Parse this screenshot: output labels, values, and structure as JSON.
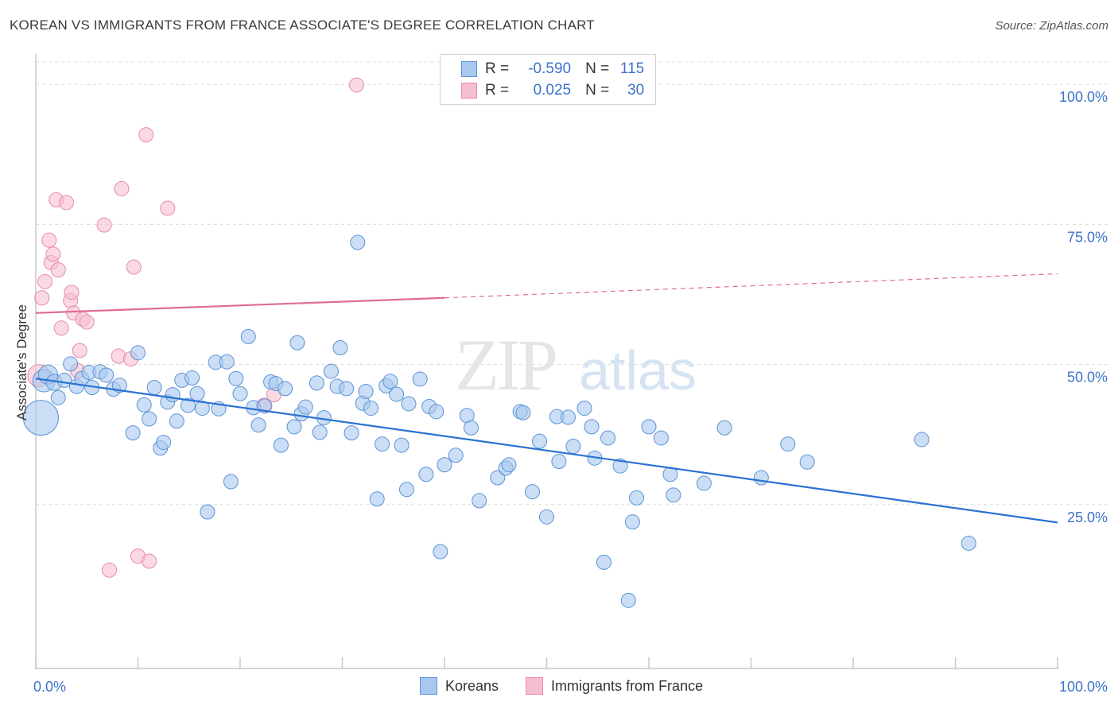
{
  "header": {
    "title": "KOREAN VS IMMIGRANTS FROM FRANCE ASSOCIATE'S DEGREE CORRELATION CHART",
    "source": "Source: ZipAtlas.com"
  },
  "watermark": {
    "zip": "ZIP",
    "atlas": "atlas"
  },
  "legend_box": {
    "rows": [
      {
        "r_label": "R =",
        "r_value": "-0.590",
        "n_label": "N =",
        "n_value": "115"
      },
      {
        "r_label": "R =",
        "r_value": "0.025",
        "n_label": "N =",
        "n_value": "30"
      }
    ]
  },
  "bottom_legend": [
    {
      "label": "Koreans"
    },
    {
      "label": "Immigrants from France"
    }
  ],
  "colors": {
    "blue_fill": "#a9c8ef",
    "blue_stroke": "#5b93d6",
    "blue_line": "#2a72d2",
    "pink_fill": "#f6bfd1",
    "pink_stroke": "#e88aa9",
    "pink_line": "#e06c93",
    "tick_label": "#3a74c9",
    "grid": "#dcdcdc"
  },
  "chart_data": {
    "type": "scatter",
    "title": "KOREAN VS IMMIGRANTS FROM FRANCE ASSOCIATE'S DEGREE CORRELATION CHART",
    "ylabel": "Associate's Degree",
    "xlabel": "",
    "xlim": [
      0,
      100
    ],
    "ylim": [
      0,
      105
    ],
    "x_tick_labels": [
      "0.0%",
      "100.0%"
    ],
    "y_ticks": [
      25,
      50,
      75,
      100
    ],
    "y_tick_labels": [
      "25.0%",
      "50.0%",
      "75.0%",
      "100.0%"
    ],
    "grid": true,
    "legend_position": "top-center",
    "series": [
      {
        "name": "Koreans",
        "color": "#a9c8ef",
        "R": -0.59,
        "N": 115,
        "trend": {
          "x": [
            0,
            100
          ],
          "y": [
            47.5,
            21.8
          ],
          "style": "solid"
        },
        "points": [
          [
            0.5,
            40.5,
            22
          ],
          [
            0.8,
            47.1,
            14
          ],
          [
            1.2,
            48.2,
            12
          ],
          [
            1.8,
            46.8,
            10
          ],
          [
            2.2,
            44.1,
            9
          ],
          [
            2.8,
            47.2,
            9
          ],
          [
            3.4,
            50.1,
            9
          ],
          [
            4.0,
            46.1,
            9
          ],
          [
            4.5,
            47.5,
            9
          ],
          [
            5.2,
            48.6,
            9
          ],
          [
            5.5,
            45.9,
            9
          ],
          [
            6.3,
            48.7,
            9
          ],
          [
            6.9,
            48.1,
            9
          ],
          [
            7.6,
            45.6,
            9
          ],
          [
            8.2,
            46.3,
            9
          ],
          [
            9.5,
            37.8,
            9
          ],
          [
            10.0,
            52.1,
            9
          ],
          [
            10.6,
            42.8,
            9
          ],
          [
            11.1,
            40.3,
            9
          ],
          [
            11.6,
            45.9,
            9
          ],
          [
            12.2,
            35.1,
            9
          ],
          [
            12.5,
            36.1,
            9
          ],
          [
            12.9,
            43.3,
            9
          ],
          [
            13.4,
            44.6,
            9
          ],
          [
            13.8,
            39.9,
            9
          ],
          [
            14.3,
            47.2,
            9
          ],
          [
            14.9,
            42.7,
            9
          ],
          [
            15.3,
            47.6,
            9
          ],
          [
            15.8,
            44.8,
            9
          ],
          [
            16.3,
            42.2,
            9
          ],
          [
            16.8,
            23.7,
            9
          ],
          [
            17.6,
            50.4,
            9
          ],
          [
            17.9,
            42.1,
            9
          ],
          [
            18.7,
            50.5,
            9
          ],
          [
            19.1,
            29.1,
            9
          ],
          [
            19.6,
            47.5,
            9
          ],
          [
            20.0,
            44.8,
            9
          ],
          [
            20.8,
            55.0,
            9
          ],
          [
            21.3,
            42.3,
            9
          ],
          [
            21.8,
            39.2,
            9
          ],
          [
            22.4,
            42.6,
            9
          ],
          [
            23.0,
            46.9,
            9
          ],
          [
            23.5,
            46.6,
            9
          ],
          [
            24.0,
            35.6,
            9
          ],
          [
            24.4,
            45.7,
            9
          ],
          [
            25.3,
            38.9,
            9
          ],
          [
            25.6,
            53.9,
            9
          ],
          [
            26.0,
            41.2,
            9
          ],
          [
            26.4,
            42.4,
            9
          ],
          [
            27.5,
            46.7,
            9
          ],
          [
            27.8,
            37.9,
            9
          ],
          [
            28.2,
            40.5,
            9
          ],
          [
            28.9,
            48.8,
            9
          ],
          [
            29.5,
            46.1,
            9
          ],
          [
            29.8,
            53.0,
            9
          ],
          [
            30.4,
            45.7,
            9
          ],
          [
            30.9,
            37.8,
            9
          ],
          [
            31.5,
            71.8,
            9
          ],
          [
            32.0,
            43.1,
            9
          ],
          [
            32.3,
            45.2,
            9
          ],
          [
            32.8,
            42.2,
            9
          ],
          [
            33.4,
            26.0,
            9
          ],
          [
            33.9,
            35.8,
            9
          ],
          [
            34.3,
            46.2,
            9
          ],
          [
            34.7,
            47.0,
            9
          ],
          [
            35.3,
            44.7,
            9
          ],
          [
            35.8,
            35.6,
            9
          ],
          [
            36.3,
            27.7,
            9
          ],
          [
            36.5,
            43.0,
            9
          ],
          [
            37.6,
            47.4,
            9
          ],
          [
            38.2,
            30.4,
            9
          ],
          [
            38.5,
            42.5,
            9
          ],
          [
            39.2,
            41.6,
            9
          ],
          [
            39.6,
            16.6,
            9
          ],
          [
            40.0,
            32.1,
            9
          ],
          [
            41.1,
            33.8,
            9
          ],
          [
            42.2,
            40.9,
            9
          ],
          [
            42.6,
            38.7,
            9
          ],
          [
            43.4,
            25.7,
            9
          ],
          [
            45.2,
            29.8,
            9
          ],
          [
            46.0,
            31.5,
            9
          ],
          [
            46.3,
            32.1,
            9
          ],
          [
            47.4,
            41.6,
            9
          ],
          [
            47.7,
            41.4,
            9
          ],
          [
            48.6,
            27.3,
            9
          ],
          [
            49.3,
            36.3,
            9
          ],
          [
            50.0,
            22.8,
            9
          ],
          [
            51.0,
            40.7,
            9
          ],
          [
            51.2,
            32.7,
            9
          ],
          [
            52.1,
            40.6,
            9
          ],
          [
            52.6,
            35.4,
            9
          ],
          [
            53.7,
            42.2,
            9
          ],
          [
            54.4,
            38.9,
            9
          ],
          [
            54.7,
            33.3,
            9
          ],
          [
            55.6,
            14.7,
            9
          ],
          [
            56.0,
            36.9,
            9
          ],
          [
            57.2,
            31.9,
            9
          ],
          [
            58.0,
            7.9,
            9
          ],
          [
            58.4,
            21.9,
            9
          ],
          [
            58.8,
            26.2,
            9
          ],
          [
            60.0,
            38.9,
            9
          ],
          [
            61.2,
            36.9,
            9
          ],
          [
            62.1,
            30.4,
            9
          ],
          [
            62.4,
            26.7,
            9
          ],
          [
            65.4,
            28.8,
            9
          ],
          [
            67.4,
            38.7,
            9
          ],
          [
            71.0,
            29.8,
            9
          ],
          [
            73.6,
            35.8,
            9
          ],
          [
            75.5,
            32.6,
            9
          ],
          [
            86.7,
            36.6,
            9
          ],
          [
            91.3,
            18.1,
            9
          ]
        ]
      },
      {
        "name": "Immigrants from France",
        "color": "#f6bfd1",
        "R": 0.025,
        "N": 30,
        "trend": {
          "x": [
            0,
            40,
            100
          ],
          "y": [
            59.2,
            61.9,
            66.2
          ],
          "style": "solid-then-dashed"
        },
        "points": [
          [
            0.3,
            48.0,
            14
          ],
          [
            0.6,
            61.9,
            9
          ],
          [
            0.9,
            64.8,
            9
          ],
          [
            1.3,
            72.2,
            9
          ],
          [
            1.5,
            68.2,
            9
          ],
          [
            1.7,
            69.7,
            9
          ],
          [
            2.0,
            79.4,
            9
          ],
          [
            2.2,
            66.9,
            9
          ],
          [
            2.5,
            56.5,
            9
          ],
          [
            3.0,
            78.9,
            9
          ],
          [
            3.4,
            61.4,
            9
          ],
          [
            3.5,
            62.9,
            9
          ],
          [
            3.7,
            59.2,
            9
          ],
          [
            4.1,
            48.9,
            9
          ],
          [
            4.3,
            52.5,
            9
          ],
          [
            4.6,
            58.1,
            9
          ],
          [
            5.0,
            57.6,
            9
          ],
          [
            6.7,
            74.9,
            9
          ],
          [
            7.2,
            13.3,
            9
          ],
          [
            8.1,
            51.5,
            9
          ],
          [
            8.4,
            81.4,
            9
          ],
          [
            9.3,
            51.0,
            9
          ],
          [
            9.6,
            67.4,
            9
          ],
          [
            10.0,
            15.8,
            9
          ],
          [
            10.8,
            91.0,
            9
          ],
          [
            11.1,
            14.9,
            9
          ],
          [
            12.9,
            77.9,
            9
          ],
          [
            22.3,
            42.7,
            9
          ],
          [
            23.3,
            44.6,
            9
          ],
          [
            31.4,
            99.9,
            9
          ]
        ]
      }
    ]
  }
}
